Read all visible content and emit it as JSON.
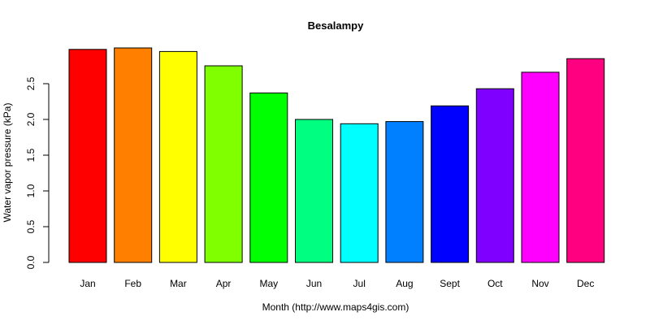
{
  "chart_data": {
    "type": "bar",
    "title": "Besalampy",
    "xlabel": "Month (http://www.maps4gis.com)",
    "ylabel": "Water vapor pressure (kPa)",
    "categories": [
      "Jan",
      "Feb",
      "Mar",
      "Apr",
      "May",
      "Jun",
      "Jul",
      "Aug",
      "Sept",
      "Oct",
      "Nov",
      "Dec"
    ],
    "values": [
      2.98,
      3.0,
      2.95,
      2.75,
      2.37,
      2.0,
      1.94,
      1.97,
      2.19,
      2.43,
      2.66,
      2.85
    ],
    "colors": [
      "#FF0000",
      "#FF8000",
      "#FFFF00",
      "#80FF00",
      "#00FF00",
      "#00FF80",
      "#00FFFF",
      "#0080FF",
      "#0000FF",
      "#8000FF",
      "#FF00FF",
      "#FF0080"
    ],
    "ylim": [
      0,
      3.0
    ],
    "yticks": [
      "0.0",
      "0.5",
      "1.0",
      "1.5",
      "2.0",
      "2.5"
    ],
    "grid": false,
    "legend": "none"
  }
}
